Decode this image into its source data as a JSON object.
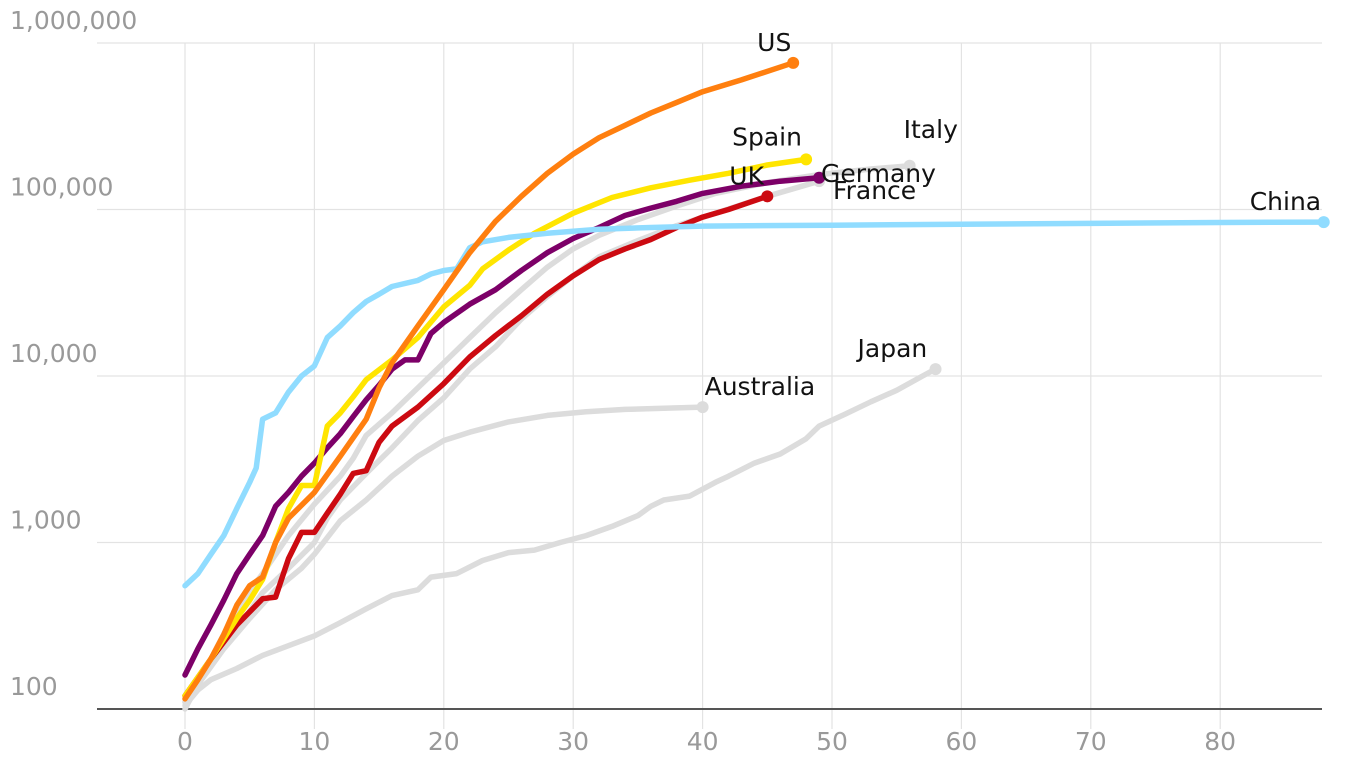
{
  "chart_data": {
    "type": "line",
    "title": "",
    "xlabel": "",
    "ylabel": "",
    "yscale": "log",
    "xlim": [
      -7,
      88
    ],
    "ylim": [
      100,
      1000000
    ],
    "x_ticks": [
      0,
      10,
      20,
      30,
      40,
      50,
      60,
      70,
      80
    ],
    "x_tick_labels": [
      "0",
      "10",
      "20",
      "30",
      "40",
      "50",
      "60",
      "70",
      "80"
    ],
    "y_ticks": [
      100,
      1000,
      10000,
      100000,
      1000000
    ],
    "y_tick_labels": [
      "100",
      "1,000",
      "10,000",
      "100,000",
      "1,000,000"
    ],
    "grid": true,
    "legend": "direct-labels",
    "series": [
      {
        "name": "Japan",
        "label": "Japan",
        "color": "#dcdcdc",
        "highlight": false,
        "points": [
          [
            0,
            105
          ],
          [
            1,
            130
          ],
          [
            2,
            150
          ],
          [
            4,
            175
          ],
          [
            6,
            210
          ],
          [
            8,
            240
          ],
          [
            10,
            275
          ],
          [
            12,
            330
          ],
          [
            14,
            400
          ],
          [
            16,
            480
          ],
          [
            18,
            520
          ],
          [
            19,
            620
          ],
          [
            21,
            650
          ],
          [
            23,
            780
          ],
          [
            25,
            870
          ],
          [
            27,
            900
          ],
          [
            29,
            1000
          ],
          [
            31,
            1100
          ],
          [
            33,
            1250
          ],
          [
            35,
            1450
          ],
          [
            36,
            1650
          ],
          [
            37,
            1800
          ],
          [
            39,
            1900
          ],
          [
            41,
            2300
          ],
          [
            42,
            2500
          ],
          [
            44,
            3000
          ],
          [
            46,
            3400
          ],
          [
            48,
            4200
          ],
          [
            49,
            5000
          ],
          [
            51,
            5900
          ],
          [
            53,
            7000
          ],
          [
            55,
            8200
          ],
          [
            57,
            10000
          ],
          [
            58,
            11000
          ]
        ]
      },
      {
        "name": "Australia",
        "label": "Australia",
        "color": "#dcdcdc",
        "highlight": false,
        "points": [
          [
            0,
            100
          ],
          [
            1,
            140
          ],
          [
            3,
            230
          ],
          [
            5,
            350
          ],
          [
            7,
            520
          ],
          [
            9,
            700
          ],
          [
            10,
            850
          ],
          [
            12,
            1350
          ],
          [
            14,
            1800
          ],
          [
            16,
            2500
          ],
          [
            18,
            3300
          ],
          [
            20,
            4100
          ],
          [
            22,
            4600
          ],
          [
            25,
            5300
          ],
          [
            28,
            5800
          ],
          [
            31,
            6100
          ],
          [
            34,
            6300
          ],
          [
            37,
            6400
          ],
          [
            40,
            6500
          ]
        ]
      },
      {
        "name": "Italy",
        "label": "Italy",
        "color": "#dcdcdc",
        "highlight": false,
        "points": [
          [
            0,
            110
          ],
          [
            2,
            200
          ],
          [
            4,
            400
          ],
          [
            6,
            650
          ],
          [
            8,
            1100
          ],
          [
            10,
            1700
          ],
          [
            12,
            2500
          ],
          [
            13,
            3200
          ],
          [
            14,
            4400
          ],
          [
            16,
            6000
          ],
          [
            18,
            8500
          ],
          [
            20,
            12000
          ],
          [
            22,
            17000
          ],
          [
            24,
            24000
          ],
          [
            26,
            33000
          ],
          [
            28,
            45000
          ],
          [
            30,
            58000
          ],
          [
            32,
            70000
          ],
          [
            35,
            87000
          ],
          [
            38,
            105000
          ],
          [
            41,
            125000
          ],
          [
            45,
            145000
          ],
          [
            49,
            162000
          ],
          [
            53,
            175000
          ],
          [
            56,
            183000
          ]
        ]
      },
      {
        "name": "France",
        "label": "France",
        "color": "#dcdcdc",
        "highlight": false,
        "points": [
          [
            0,
            110
          ],
          [
            2,
            180
          ],
          [
            4,
            300
          ],
          [
            6,
            500
          ],
          [
            8,
            700
          ],
          [
            10,
            1000
          ],
          [
            11,
            1400
          ],
          [
            12,
            1800
          ],
          [
            14,
            2600
          ],
          [
            16,
            3700
          ],
          [
            18,
            5400
          ],
          [
            20,
            7400
          ],
          [
            22,
            11000
          ],
          [
            24,
            15000
          ],
          [
            26,
            22000
          ],
          [
            28,
            30000
          ],
          [
            30,
            40000
          ],
          [
            32,
            52000
          ],
          [
            35,
            65000
          ],
          [
            38,
            80000
          ],
          [
            41,
            95000
          ],
          [
            45,
            120000
          ],
          [
            49,
            148000
          ]
        ]
      },
      {
        "name": "UK",
        "label": "UK",
        "color": "#cc0a11",
        "highlight": true,
        "points": [
          [
            0,
            120
          ],
          [
            2,
            200
          ],
          [
            4,
            320
          ],
          [
            6,
            460
          ],
          [
            7,
            470
          ],
          [
            8,
            800
          ],
          [
            9,
            1150
          ],
          [
            10,
            1150
          ],
          [
            11,
            1500
          ],
          [
            12,
            1950
          ],
          [
            13,
            2600
          ],
          [
            14,
            2700
          ],
          [
            15,
            4000
          ],
          [
            16,
            5000
          ],
          [
            18,
            6500
          ],
          [
            20,
            9000
          ],
          [
            22,
            13000
          ],
          [
            24,
            17500
          ],
          [
            26,
            23000
          ],
          [
            28,
            31000
          ],
          [
            30,
            40000
          ],
          [
            32,
            50000
          ],
          [
            34,
            58000
          ],
          [
            36,
            66000
          ],
          [
            38,
            78000
          ],
          [
            40,
            90000
          ],
          [
            42,
            100000
          ],
          [
            45,
            120000
          ]
        ]
      },
      {
        "name": "Germany",
        "label": "Germany",
        "color": "#7d0068",
        "highlight": true,
        "points": [
          [
            0,
            160
          ],
          [
            1,
            230
          ],
          [
            2,
            320
          ],
          [
            3,
            450
          ],
          [
            4,
            650
          ],
          [
            5,
            850
          ],
          [
            6,
            1100
          ],
          [
            7,
            1650
          ],
          [
            8,
            2000
          ],
          [
            9,
            2500
          ],
          [
            10,
            3000
          ],
          [
            11,
            3700
          ],
          [
            12,
            4500
          ],
          [
            13,
            5700
          ],
          [
            14,
            7200
          ],
          [
            15,
            8800
          ],
          [
            16,
            11000
          ],
          [
            17,
            12500
          ],
          [
            18,
            12500
          ],
          [
            19,
            18000
          ],
          [
            20,
            21000
          ],
          [
            22,
            27000
          ],
          [
            24,
            33000
          ],
          [
            26,
            43000
          ],
          [
            28,
            55000
          ],
          [
            30,
            67000
          ],
          [
            32,
            78000
          ],
          [
            34,
            92000
          ],
          [
            36,
            102000
          ],
          [
            38,
            112000
          ],
          [
            40,
            125000
          ],
          [
            43,
            138000
          ],
          [
            46,
            148000
          ],
          [
            49,
            155000
          ]
        ]
      },
      {
        "name": "Spain",
        "label": "Spain",
        "color": "#ffe500",
        "highlight": true,
        "points": [
          [
            0,
            120
          ],
          [
            2,
            200
          ],
          [
            4,
            350
          ],
          [
            5,
            450
          ],
          [
            6,
            600
          ],
          [
            7,
            1000
          ],
          [
            8,
            1600
          ],
          [
            9,
            2200
          ],
          [
            10,
            2200
          ],
          [
            11,
            5000
          ],
          [
            12,
            6000
          ],
          [
            13,
            7500
          ],
          [
            14,
            9500
          ],
          [
            16,
            12500
          ],
          [
            18,
            17000
          ],
          [
            20,
            26000
          ],
          [
            22,
            35000
          ],
          [
            23,
            44000
          ],
          [
            25,
            57000
          ],
          [
            27,
            72000
          ],
          [
            30,
            95000
          ],
          [
            33,
            118000
          ],
          [
            36,
            135000
          ],
          [
            39,
            150000
          ],
          [
            42,
            165000
          ],
          [
            45,
            185000
          ],
          [
            48,
            200000
          ]
        ]
      },
      {
        "name": "China",
        "label": "China",
        "color": "#90dcff",
        "highlight": true,
        "points": [
          [
            0,
            550
          ],
          [
            1,
            650
          ],
          [
            2,
            850
          ],
          [
            3,
            1100
          ],
          [
            4,
            1600
          ],
          [
            5,
            2300
          ],
          [
            5.5,
            2800
          ],
          [
            6,
            5500
          ],
          [
            7,
            6000
          ],
          [
            8,
            8000
          ],
          [
            9,
            10000
          ],
          [
            10,
            11500
          ],
          [
            11,
            17000
          ],
          [
            12,
            20000
          ],
          [
            13,
            24000
          ],
          [
            14,
            28000
          ],
          [
            15,
            31000
          ],
          [
            16,
            34500
          ],
          [
            18,
            37500
          ],
          [
            19,
            41000
          ],
          [
            20,
            43000
          ],
          [
            21,
            44000
          ],
          [
            22,
            59000
          ],
          [
            23,
            64000
          ],
          [
            25,
            68000
          ],
          [
            28,
            72000
          ],
          [
            32,
            76000
          ],
          [
            36,
            78000
          ],
          [
            40,
            79500
          ],
          [
            50,
            80500
          ],
          [
            60,
            81500
          ],
          [
            70,
            82500
          ],
          [
            80,
            83500
          ],
          [
            88,
            84000
          ]
        ]
      },
      {
        "name": "US",
        "label": "US",
        "color": "#ff7f0f",
        "highlight": true,
        "points": [
          [
            0,
            115
          ],
          [
            1,
            150
          ],
          [
            2,
            200
          ],
          [
            3,
            280
          ],
          [
            4,
            420
          ],
          [
            5,
            550
          ],
          [
            6,
            620
          ],
          [
            7,
            1000
          ],
          [
            8,
            1400
          ],
          [
            10,
            2000
          ],
          [
            12,
            3300
          ],
          [
            14,
            5500
          ],
          [
            15,
            8500
          ],
          [
            16,
            12000
          ],
          [
            18,
            20000
          ],
          [
            20,
            33000
          ],
          [
            22,
            55000
          ],
          [
            24,
            85000
          ],
          [
            26,
            120000
          ],
          [
            28,
            165000
          ],
          [
            30,
            215000
          ],
          [
            32,
            270000
          ],
          [
            34,
            320000
          ],
          [
            36,
            380000
          ],
          [
            38,
            440000
          ],
          [
            40,
            510000
          ],
          [
            43,
            600000
          ],
          [
            47,
            760000
          ]
        ]
      }
    ]
  }
}
